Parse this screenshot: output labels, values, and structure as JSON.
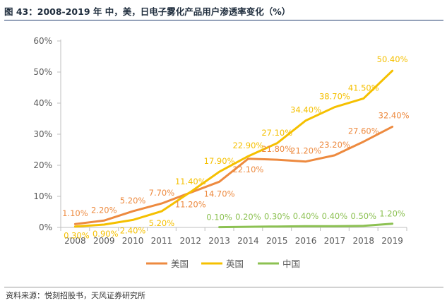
{
  "title": "图 43：2008-2019 年 中，美，日电子雾化产品用户渗透率变化（%）",
  "source": "资料来源：悦刻招股书，天风证券研究所",
  "chart_data": {
    "type": "line",
    "categories": [
      "2008",
      "2009",
      "2010",
      "2011",
      "2012",
      "2013",
      "2014",
      "2015",
      "2016",
      "2017",
      "2018",
      "2019"
    ],
    "ylim": [
      0,
      60
    ],
    "yticks": [
      0,
      10,
      20,
      30,
      40,
      50,
      60
    ],
    "ytick_labels": [
      "0%",
      "10%",
      "20%",
      "30%",
      "40%",
      "50%",
      "60%"
    ],
    "grid": false,
    "legend_position": "bottom",
    "series": [
      {
        "name": "美国",
        "color": "#ed8a3f",
        "values": [
          1.1,
          2.2,
          5.2,
          7.7,
          11.2,
          14.7,
          22.1,
          21.8,
          21.2,
          23.2,
          27.6,
          32.4
        ],
        "labels": [
          "1.10%",
          "2.20%",
          "5.20%",
          "7.70%",
          "11.20%",
          "14.70%",
          "22.10%",
          "21.80%",
          "21.20%",
          "23.20%",
          "27.60%",
          "32.40%"
        ]
      },
      {
        "name": "英国",
        "color": "#f5c000",
        "values": [
          0.3,
          0.9,
          2.4,
          5.2,
          11.4,
          17.9,
          22.9,
          27.1,
          34.4,
          38.7,
          41.5,
          50.4
        ],
        "labels": [
          "0.30%",
          "0.90%",
          "2.40%",
          "5.20%",
          "11.40%",
          "17.90%",
          "22.90%",
          "27.10%",
          "34.40%",
          "38.70%",
          "41.50%",
          "50.40%"
        ]
      },
      {
        "name": "中国",
        "color": "#8cc152",
        "values": [
          null,
          null,
          null,
          null,
          null,
          0.1,
          0.2,
          0.3,
          0.4,
          0.4,
          0.5,
          1.2
        ],
        "labels": [
          null,
          null,
          null,
          null,
          null,
          "0.10%",
          "0.20%",
          "0.30%",
          "0.40%",
          "0.40%",
          "0.50%",
          "1.20%"
        ]
      }
    ]
  }
}
